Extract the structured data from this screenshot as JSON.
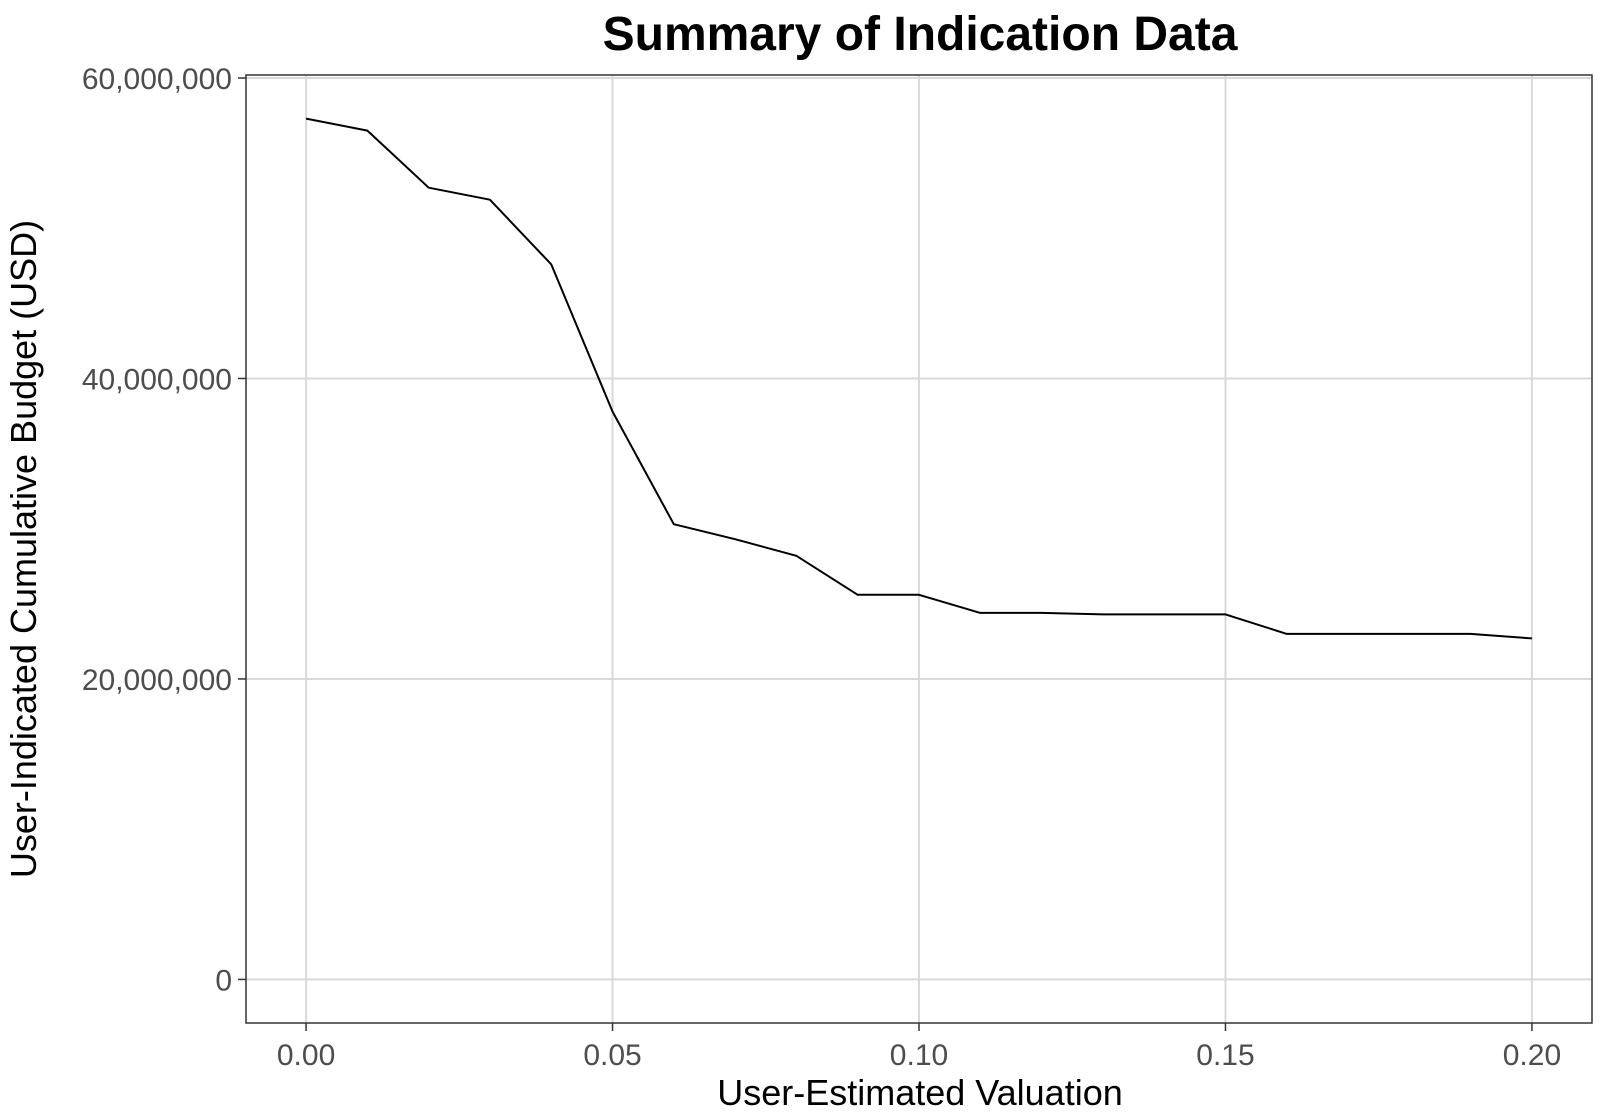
{
  "chart_data": {
    "type": "line",
    "title": "Summary of Indication Data",
    "xlabel": "User-Estimated Valuation",
    "ylabel": "User-Indicated Cumulative Budget (USD)",
    "xlim": [
      -0.0098,
      0.2098
    ],
    "ylim": [
      -2900000,
      60200000
    ],
    "x_ticks": [
      0.0,
      0.05,
      0.1,
      0.15,
      0.2
    ],
    "x_tick_labels": [
      "0.00",
      "0.05",
      "0.10",
      "0.15",
      "0.20"
    ],
    "y_ticks": [
      0,
      20000000,
      40000000,
      60000000
    ],
    "y_tick_labels": [
      "0",
      "20,000,000",
      "40,000,000",
      "60,000,000"
    ],
    "grid": true,
    "line_color": "#000000",
    "grid_color": "#d9d9d9",
    "series": [
      {
        "x": [
          0.0,
          0.01,
          0.02,
          0.03,
          0.04,
          0.05,
          0.06,
          0.07,
          0.08,
          0.09,
          0.1,
          0.11,
          0.12,
          0.13,
          0.14,
          0.15,
          0.16,
          0.17,
          0.18,
          0.19,
          0.2
        ],
        "values": [
          57300000,
          56500000,
          52700000,
          51900000,
          47600000,
          37800000,
          30300000,
          29300000,
          28200000,
          25600000,
          25600000,
          24400000,
          24400000,
          24300000,
          24300000,
          24300000,
          23000000,
          23000000,
          23000000,
          23000000,
          22700000
        ]
      }
    ]
  }
}
